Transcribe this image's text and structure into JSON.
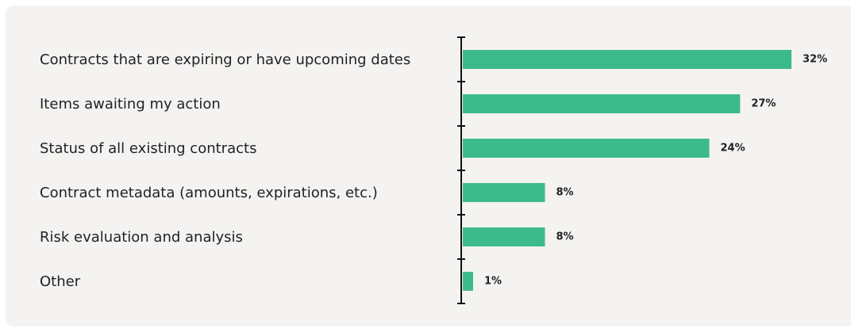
{
  "chart_data": {
    "type": "bar",
    "orientation": "horizontal",
    "categories": [
      "Contracts that are expiring or have upcoming dates",
      "Items awaiting my action",
      "Status of all existing contracts",
      "Contract metadata (amounts, expirations, etc.)",
      "Risk evaluation and analysis",
      "Other"
    ],
    "values": [
      32,
      27,
      24,
      8,
      8,
      1
    ],
    "value_labels": [
      "32%",
      "27%",
      "24%",
      "8%",
      "8%",
      "1%"
    ],
    "color": "#3dba8c"
  }
}
